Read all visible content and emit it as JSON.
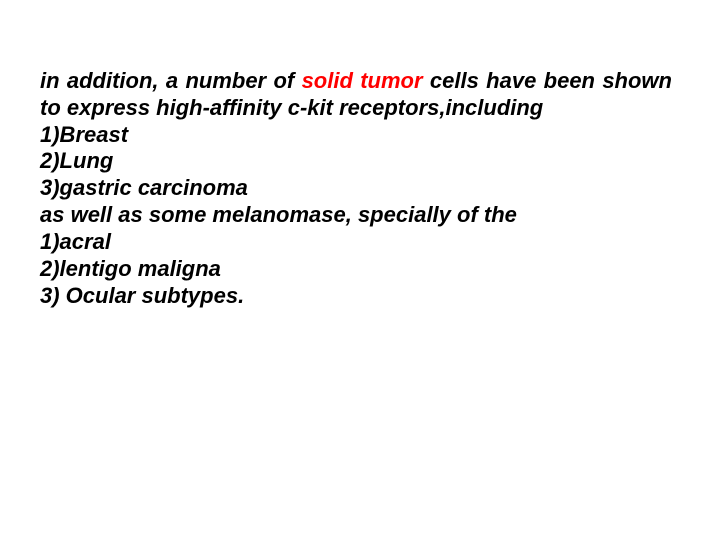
{
  "slide": {
    "background_color": "#ffffff",
    "text_color": "#000000",
    "highlight_color": "#ff0000",
    "font_family": "Verdana, sans-serif",
    "font_size_pt": 22,
    "font_style": "italic",
    "intro_pre": "in addition, a number of ",
    "intro_highlight": "solid tumor",
    "intro_post": " cells have been shown to express high-affinity c-kit receptors,",
    "intro_tail": "including",
    "list1": {
      "item1": "1)Breast",
      "item2": "2)Lung",
      "item3": "3)gastric carcinoma"
    },
    "bridge": "as well as some melanomase, specially of the",
    "list2": {
      "item1": "1)acral",
      "item2": "2)lentigo maligna",
      "item3": "3) Ocular subtypes."
    }
  }
}
